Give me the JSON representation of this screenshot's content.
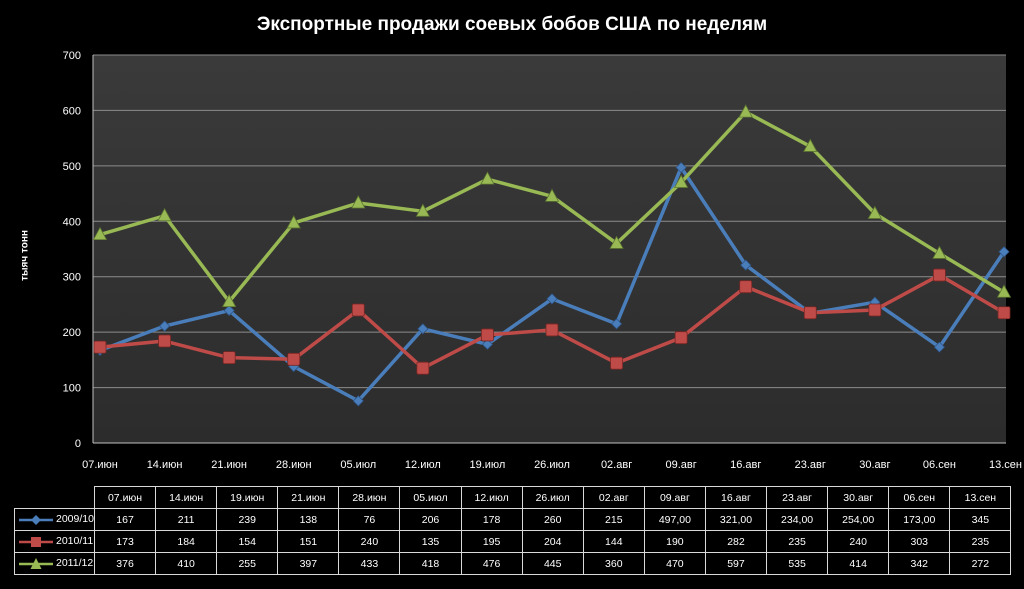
{
  "chart_data": {
    "type": "line",
    "title": "Экспортные продажи соевых бобов США по неделям",
    "ylabel": "тыяч тонн",
    "xlabel": "",
    "ylim": [
      0,
      700
    ],
    "yticks": [
      "0",
      "100",
      "200",
      "300",
      "400",
      "500",
      "600",
      "700"
    ],
    "grid": true,
    "legend": "data-table-bottom",
    "axis_categories": [
      "07.июн",
      "14.июн",
      "21.июн",
      "28.июн",
      "05.июл",
      "12.июл",
      "19.июл",
      "26.июл",
      "02.авг",
      "09.авг",
      "16.авг",
      "23.авг",
      "30.авг",
      "06.сен",
      "13.сен"
    ],
    "table_categories": [
      "07.июн",
      "14.июн",
      "19.июн",
      "21.июн",
      "28.июн",
      "05.июл",
      "12.июл",
      "26.июл",
      "02.авг",
      "09.авг",
      "16.авг",
      "23.авг",
      "30.авг",
      "06.сен",
      "13.сен"
    ],
    "series": [
      {
        "name": "2009/10",
        "color": "#4a7ebb",
        "marker": "diamond",
        "values": [
          167,
          211,
          239,
          138,
          76,
          206,
          178,
          260,
          215,
          497,
          321,
          234,
          254,
          173,
          345
        ],
        "labels": [
          "167",
          "211",
          "239",
          "138",
          "76",
          "206",
          "178",
          "260",
          "215",
          "497,00",
          "321,00",
          "234,00",
          "254,00",
          "173,00",
          "345"
        ]
      },
      {
        "name": "2010/11",
        "color": "#be4b48",
        "marker": "square",
        "values": [
          173,
          184,
          154,
          151,
          240,
          135,
          195,
          204,
          144,
          190,
          282,
          235,
          240,
          303,
          235
        ],
        "labels": [
          "173",
          "184",
          "154",
          "151",
          "240",
          "135",
          "195",
          "204",
          "144",
          "190",
          "282",
          "235",
          "240",
          "303",
          "235"
        ]
      },
      {
        "name": "2011/12",
        "color": "#98b954",
        "marker": "triangle",
        "values": [
          376,
          410,
          255,
          397,
          433,
          418,
          476,
          445,
          360,
          470,
          597,
          535,
          414,
          342,
          272
        ],
        "labels": [
          "376",
          "410",
          "255",
          "397",
          "433",
          "418",
          "476",
          "445",
          "360",
          "470",
          "597",
          "535",
          "414",
          "342",
          "272"
        ]
      }
    ]
  }
}
